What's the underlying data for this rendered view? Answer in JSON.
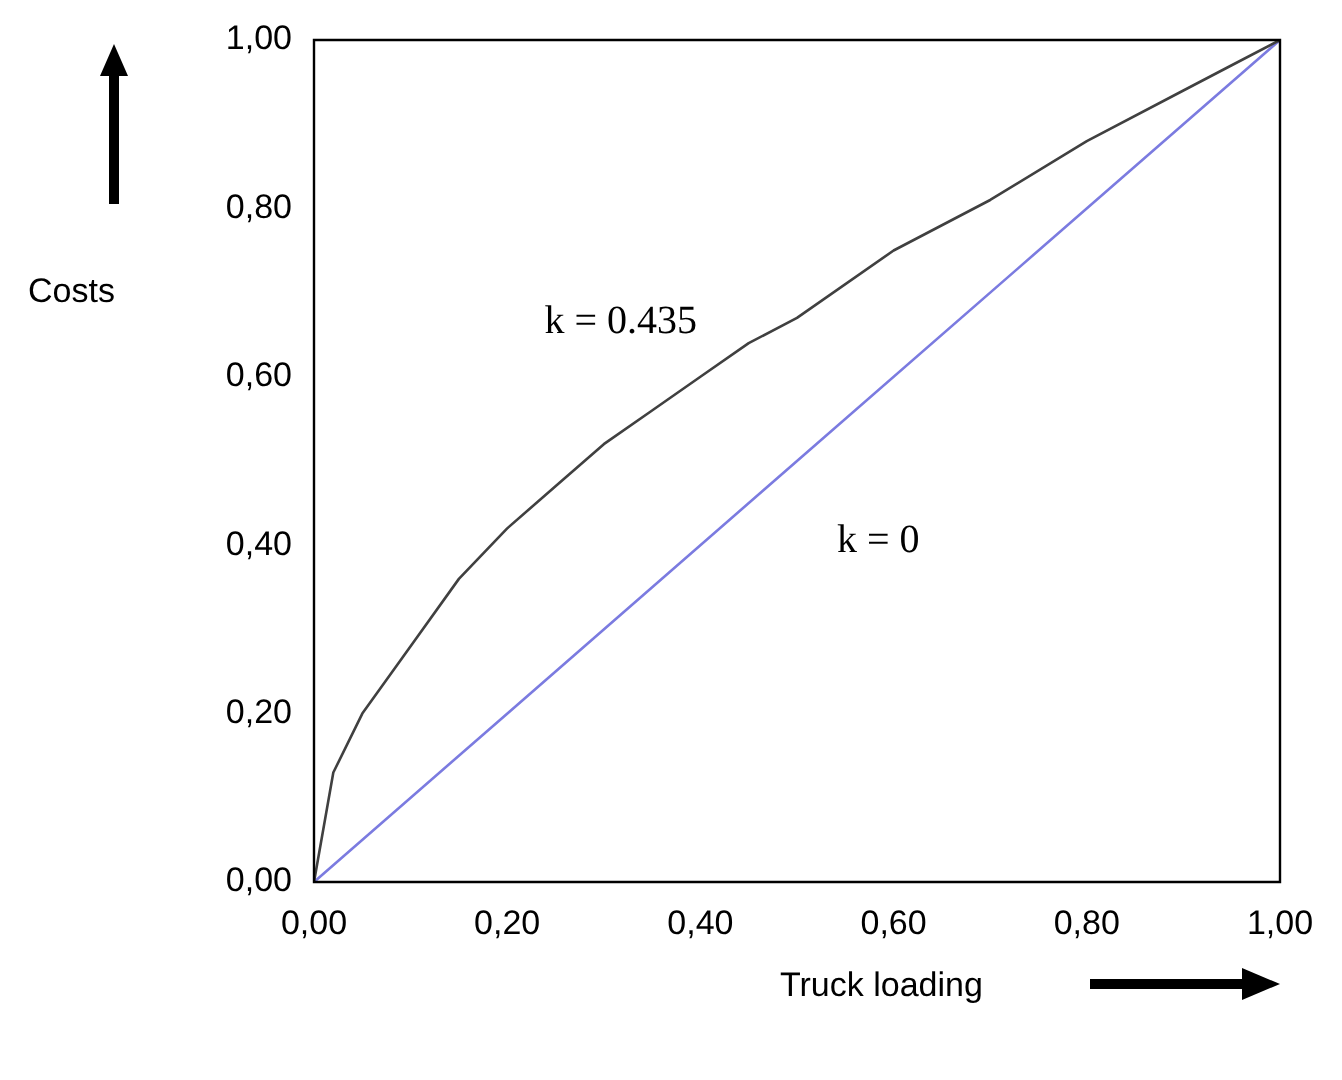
{
  "chart_data": {
    "type": "line",
    "xlabel": "Truck loading",
    "ylabel": "Costs",
    "xlim": [
      0,
      1
    ],
    "ylim": [
      0,
      1
    ],
    "xticks": [
      {
        "value": 0,
        "label": "0,00"
      },
      {
        "value": 0.2,
        "label": "0,20"
      },
      {
        "value": 0.4,
        "label": "0,40"
      },
      {
        "value": 0.6,
        "label": "0,60"
      },
      {
        "value": 0.8,
        "label": "0,80"
      },
      {
        "value": 1,
        "label": "1,00"
      }
    ],
    "yticks": [
      {
        "value": 0,
        "label": "0,00"
      },
      {
        "value": 0.2,
        "label": "0,20"
      },
      {
        "value": 0.4,
        "label": "0,40"
      },
      {
        "value": 0.6,
        "label": "0,60"
      },
      {
        "value": 0.8,
        "label": "0,80"
      },
      {
        "value": 1,
        "label": "1,00"
      }
    ],
    "series": [
      {
        "name": "k = 0.435",
        "color": "#404040",
        "x": [
          0,
          0.02,
          0.05,
          0.1,
          0.15,
          0.2,
          0.25,
          0.3,
          0.35,
          0.4,
          0.45,
          0.5,
          0.6,
          0.7,
          0.8,
          0.9,
          0.95,
          1
        ],
        "values": [
          0,
          0.13,
          0.2,
          0.28,
          0.36,
          0.42,
          0.47,
          0.52,
          0.56,
          0.6,
          0.64,
          0.67,
          0.75,
          0.81,
          0.88,
          0.94,
          0.97,
          1
        ]
      },
      {
        "name": "k = 0",
        "color": "#7b7be0",
        "x": [
          0,
          0.5,
          1
        ],
        "values": [
          0,
          0.5,
          1
        ]
      }
    ],
    "grid": false,
    "legend": false,
    "marker": "none",
    "line_style": "solid"
  }
}
